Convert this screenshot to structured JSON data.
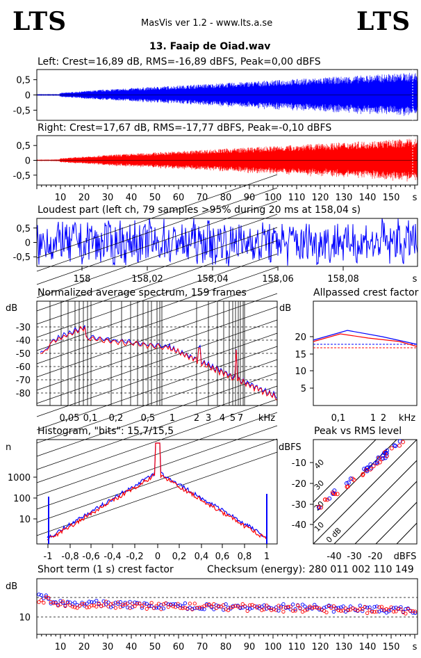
{
  "header": {
    "logo_left": "LTS",
    "logo_right": "LTS",
    "app_title": "MasVis ver 1.2 - www.lts.a.se",
    "file_name": "13. Faaip de Oiad.wav"
  },
  "colors": {
    "left": "#0000ff",
    "right": "#ff0000",
    "grid": "#000000",
    "dash": "#000000"
  },
  "waveform_left": {
    "caption": "Left: Crest=16,89 dB, RMS=-16,89 dBFS, Peak=0,00 dBFS",
    "y_ticks": [
      "0,5",
      "0",
      "-0,5"
    ]
  },
  "waveform_right": {
    "caption": "Right: Crest=17,67 dB, RMS=-17,77 dBFS, Peak=-0,10 dBFS",
    "y_ticks": [
      "0,5",
      "0",
      "-0,5"
    ]
  },
  "time_axis": {
    "labels": [
      "10",
      "20",
      "30",
      "40",
      "50",
      "60",
      "70",
      "80",
      "90",
      "100",
      "110",
      "120",
      "130",
      "140",
      "150",
      "s"
    ]
  },
  "loudest": {
    "caption": "Loudest part (left  ch, 79 samples >95% during 20 ms at 158,04 s)",
    "y_ticks": [
      "0,5",
      "0",
      "-0,5"
    ],
    "x_labels": [
      "158",
      "158,02",
      "158,04",
      "158,06",
      "158,08",
      "s"
    ]
  },
  "spectrum": {
    "caption": "Normalized average spectrum, 159 frames",
    "unit": "dB",
    "y_ticks": [
      "-30",
      "-40",
      "-50",
      "-60",
      "-70",
      "-80"
    ],
    "x_labels": [
      "0,05",
      "0,1",
      "0,2",
      "0,5",
      "1",
      "2",
      "3",
      "4",
      "5",
      "7",
      "kHz"
    ]
  },
  "allpassed": {
    "caption": "Allpassed crest factor",
    "unit": "dB",
    "y_ticks": [
      "20",
      "15",
      "10",
      "5"
    ],
    "x_labels": [
      "0,1",
      "1",
      "2",
      "kHz"
    ]
  },
  "histogram": {
    "caption": "Histogram, \"bits\": 15,7/15,5",
    "unit": "n",
    "y_ticks": [
      "1000",
      "100",
      "10"
    ],
    "x_labels": [
      "-1",
      "-0,8",
      "-0,6",
      "-0,4",
      "-0,2",
      "0",
      "0,2",
      "0,4",
      "0,6",
      "0,8",
      "1"
    ]
  },
  "peak_rms": {
    "caption": "Peak vs RMS level",
    "unit": "dBFS",
    "y_ticks": [
      "-10",
      "-20",
      "-30",
      "-40"
    ],
    "x_labels": [
      "-40",
      "-30",
      "-20",
      "dBFS"
    ],
    "diag_labels": [
      "40",
      "30",
      "20",
      "10",
      "0 dB"
    ]
  },
  "short_term": {
    "caption": "Short term (1 s) crest factor",
    "checksum": "Checksum (energy):   280 011 002 110 149",
    "unit": "dB",
    "y_ticks": [
      "10"
    ]
  }
}
